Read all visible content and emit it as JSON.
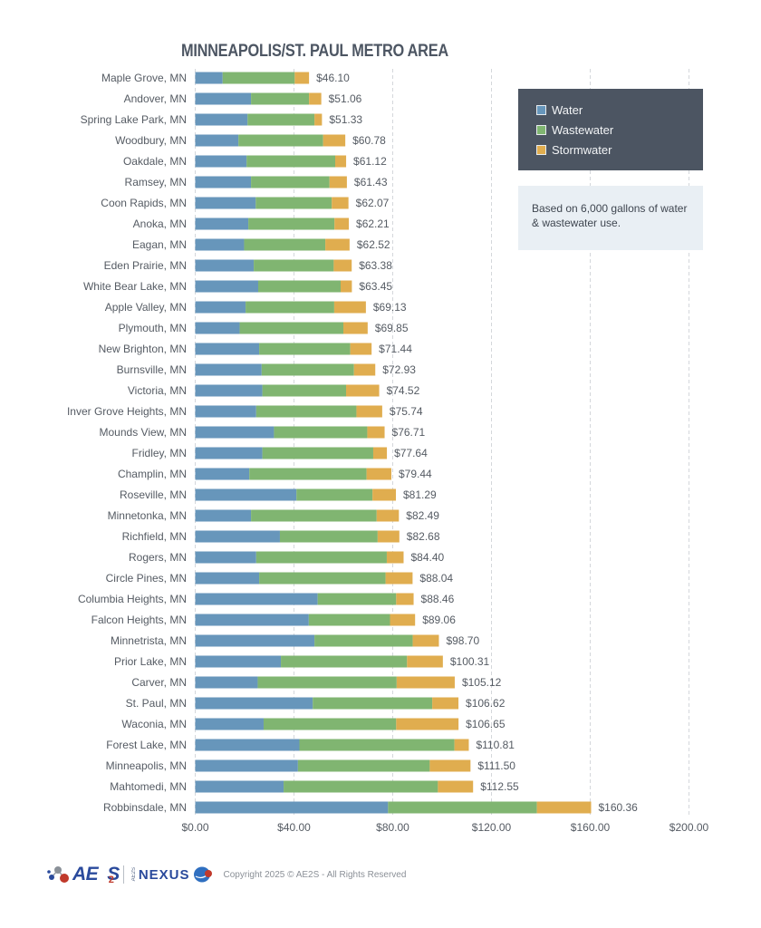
{
  "chart_data": {
    "type": "bar",
    "orientation": "horizontal",
    "stacked": true,
    "title": "MINNEAPOLIS/ST. PAUL METRO AREA",
    "xlabel": "",
    "ylabel": "",
    "xlim": [
      0,
      200
    ],
    "x_ticks": [
      "$0.00",
      "$40.00",
      "$80.00",
      "$120.00",
      "$160.00",
      "$200.00"
    ],
    "x_tick_values": [
      0,
      40,
      80,
      120,
      160,
      200
    ],
    "grid": "vertical dashed",
    "legend_placement": "top-right",
    "categories": [
      "Maple Grove, MN",
      "Andover, MN",
      "Spring Lake Park, MN",
      "Woodbury, MN",
      "Oakdale, MN",
      "Ramsey, MN",
      "Coon Rapids, MN",
      "Anoka, MN",
      "Eagan, MN",
      "Eden Prairie, MN",
      "White Bear Lake, MN",
      "Apple Valley, MN",
      "Plymouth, MN",
      "New Brighton, MN",
      "Burnsville, MN",
      "Victoria, MN",
      "Inver Grove Heights, MN",
      "Mounds View, MN",
      "Fridley, MN",
      "Champlin, MN",
      "Roseville, MN",
      "Minnetonka, MN",
      "Richfield, MN",
      "Rogers, MN",
      "Circle Pines, MN",
      "Columbia Heights, MN",
      "Falcon Heights, MN",
      "Minnetrista, MN",
      "Prior Lake, MN",
      "Carver, MN",
      "St. Paul, MN",
      "Waconia, MN",
      "Forest Lake, MN",
      "Minneapolis, MN",
      "Mahtomedi, MN",
      "Robbinsdale, MN"
    ],
    "series": [
      {
        "name": "Water",
        "color": "#6796bb",
        "values": [
          11.1,
          22.6,
          21.2,
          17.5,
          20.8,
          22.6,
          24.5,
          21.5,
          19.8,
          23.7,
          25.5,
          20.4,
          18.0,
          25.9,
          26.9,
          27.2,
          24.7,
          31.9,
          27.2,
          21.9,
          41.0,
          22.6,
          34.3,
          24.7,
          25.9,
          49.6,
          46.0,
          48.3,
          34.7,
          25.3,
          47.6,
          27.7,
          42.2,
          41.6,
          35.8,
          78.1
        ]
      },
      {
        "name": "Wastewater",
        "color": "#80b571",
        "values": [
          29.2,
          23.5,
          27.1,
          34.3,
          35.9,
          31.8,
          30.8,
          34.9,
          32.9,
          32.4,
          33.4,
          35.9,
          42.0,
          36.9,
          37.4,
          33.9,
          40.6,
          37.8,
          44.9,
          47.5,
          30.8,
          50.9,
          39.6,
          52.9,
          51.2,
          31.8,
          32.9,
          39.8,
          51.1,
          56.3,
          48.4,
          53.7,
          62.8,
          53.4,
          62.5,
          60.3
        ]
      },
      {
        "name": "Stormwater",
        "color": "#e0ad4f",
        "values": [
          5.8,
          4.96,
          3.03,
          8.98,
          4.42,
          7.03,
          6.77,
          5.81,
          9.82,
          7.28,
          4.55,
          12.83,
          9.85,
          8.64,
          8.63,
          13.42,
          10.44,
          7.01,
          5.54,
          10.04,
          9.49,
          8.99,
          8.78,
          6.8,
          10.94,
          7.06,
          10.16,
          10.6,
          14.51,
          23.52,
          10.62,
          25.25,
          5.81,
          16.5,
          14.25,
          21.96
        ]
      }
    ],
    "totals": [
      46.1,
      51.06,
      51.33,
      60.78,
      61.12,
      61.43,
      62.07,
      62.21,
      62.52,
      63.38,
      63.45,
      69.13,
      69.85,
      71.44,
      72.93,
      74.52,
      75.74,
      76.71,
      77.64,
      79.44,
      81.29,
      82.49,
      82.68,
      84.4,
      88.04,
      88.46,
      89.06,
      98.7,
      100.31,
      105.12,
      106.62,
      106.65,
      110.81,
      111.5,
      112.55,
      160.36
    ],
    "total_labels": [
      "$46.10",
      "$51.06",
      "$51.33",
      "$60.78",
      "$61.12",
      "$61.43",
      "$62.07",
      "$62.21",
      "$62.52",
      "$63.38",
      "$63.45",
      "$69.13",
      "$69.85",
      "$71.44",
      "$72.93",
      "$74.52",
      "$75.74",
      "$76.71",
      "$77.64",
      "$79.44",
      "$81.29",
      "$82.49",
      "$82.68",
      "$84.40",
      "$88.04",
      "$88.46",
      "$89.06",
      "$98.70",
      "$100.31",
      "$105.12",
      "$106.62",
      "$106.65",
      "$110.81",
      "$111.50",
      "$112.55",
      "$160.36"
    ],
    "annotations": [
      "Based on 6,000 gallons of water & wastewater use."
    ]
  },
  "legend": {
    "items": [
      {
        "label": "Water",
        "color": "#6796bb"
      },
      {
        "label": "Wastewater",
        "color": "#80b571"
      },
      {
        "label": "Stormwater",
        "color": "#e0ad4f"
      }
    ],
    "background": "#4c5562"
  },
  "note": {
    "text": "Based on 6,000 gallons of water & wastewater use."
  },
  "footer": {
    "logo_ae2s": "AE",
    "logo_ae2s_sub": "2",
    "logo_ae2s_end": "S",
    "logo_nexus_prefix": "AE2S",
    "logo_nexus": "NEXUS",
    "copyright": "Copyright 2025 © AE2S - All Rights Reserved"
  }
}
